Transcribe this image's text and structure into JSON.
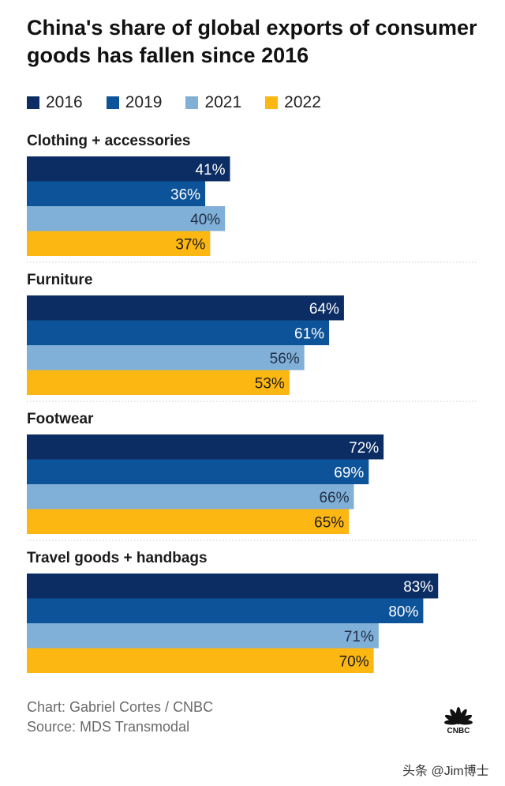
{
  "title": "China's share of global exports of consumer goods has fallen since 2016",
  "legend": [
    {
      "label": "2016",
      "color": "#0b2d63"
    },
    {
      "label": "2019",
      "color": "#0d5399"
    },
    {
      "label": "2021",
      "color": "#80b0d8"
    },
    {
      "label": "2022",
      "color": "#fcb712"
    }
  ],
  "chart_data": {
    "type": "bar",
    "orientation": "horizontal",
    "title": "China's share of global exports of consumer goods has fallen since 2016",
    "categories": [
      "Clothing + accessories",
      "Furniture",
      "Footwear",
      "Travel goods + handbags"
    ],
    "series": [
      {
        "name": "2016",
        "values": [
          41,
          64,
          72,
          83
        ],
        "color": "#0b2d63"
      },
      {
        "name": "2019",
        "values": [
          36,
          61,
          69,
          80
        ],
        "color": "#0d5399"
      },
      {
        "name": "2021",
        "values": [
          40,
          56,
          66,
          71
        ],
        "color": "#80b0d8"
      },
      {
        "name": "2022",
        "values": [
          37,
          53,
          65,
          70
        ],
        "color": "#fcb712"
      }
    ],
    "value_suffix": "%",
    "xlim": [
      0,
      100
    ]
  },
  "footer": {
    "chart_credit": "Chart: Gabriel Cortes / CNBC",
    "source": "Source: MDS Transmodal"
  },
  "logo": {
    "text": "CNBC",
    "icon": "peacock-icon"
  },
  "watermark": "头条 @Jim博士"
}
